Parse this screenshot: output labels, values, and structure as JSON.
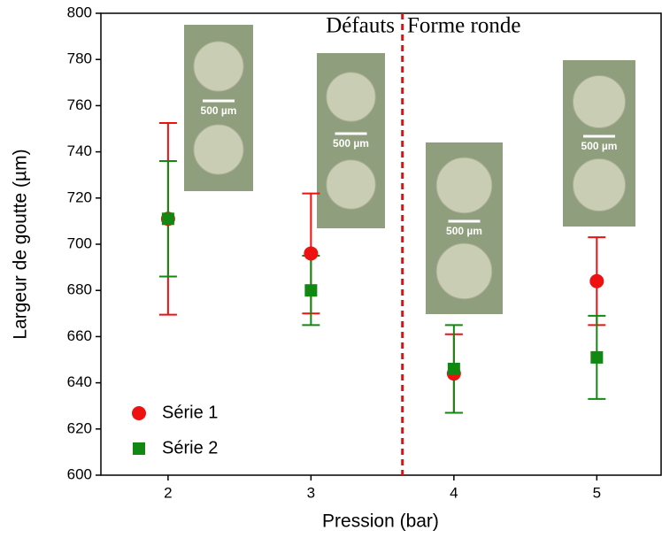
{
  "chart_data": {
    "type": "scatter",
    "x_label": "Pression (bar)",
    "y_label": "Largeur de goutte (µm)",
    "xlim": [
      1.53,
      5.45
    ],
    "xticks": [
      2,
      3,
      4,
      5
    ],
    "ylim": [
      600,
      800
    ],
    "yticks": [
      600,
      620,
      640,
      660,
      680,
      700,
      720,
      740,
      760,
      780,
      800
    ],
    "x": [
      2,
      3,
      4,
      5
    ],
    "series": [
      {
        "name": "Série 1",
        "color": "#ee1111",
        "marker": "circle",
        "values": [
          711,
          696,
          644,
          684
        ],
        "errors": [
          41.5,
          26,
          17,
          19
        ]
      },
      {
        "name": "Série 2",
        "color": "#118811",
        "marker": "square",
        "values": [
          711,
          680,
          646,
          651
        ],
        "errors": [
          25,
          15,
          19,
          18
        ]
      }
    ],
    "divider": {
      "x": 3.64,
      "color": "#dd1111"
    },
    "annotations": [
      "Défauts",
      "Forme ronde"
    ],
    "inset_scale_labels": [
      "500 µm",
      "500 µm",
      "500 µm",
      "500 µm"
    ],
    "legend": "lower left"
  }
}
